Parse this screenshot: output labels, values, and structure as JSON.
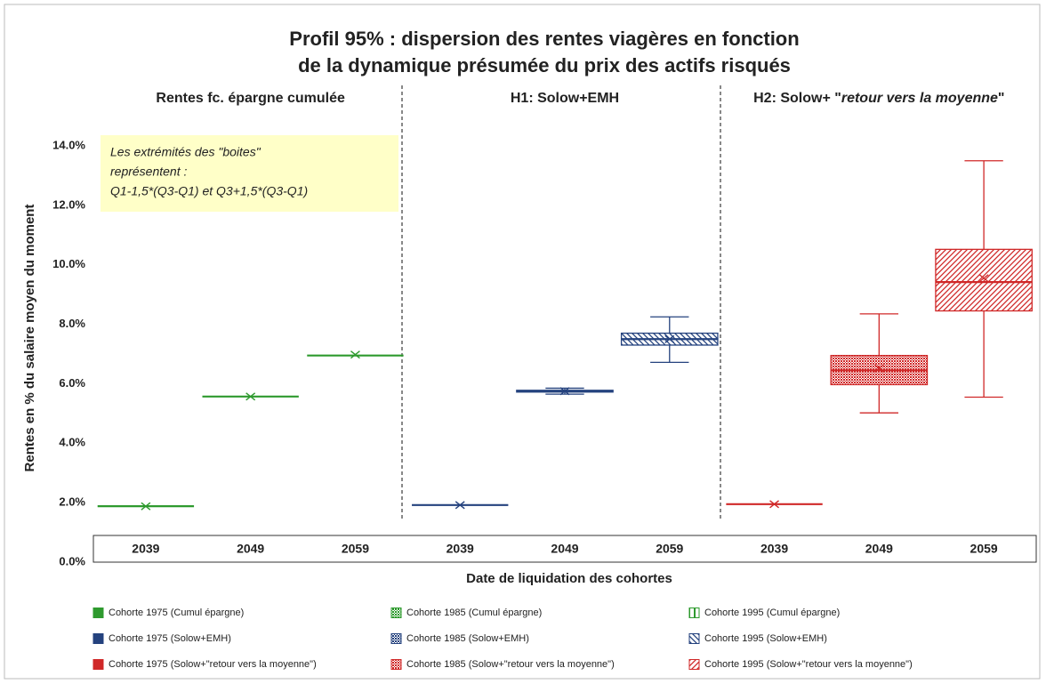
{
  "chart_data": {
    "type": "box",
    "title": [
      "Profil 95% : dispersion des rentes viagères en fonction",
      "de la dynamique présumée du prix des actifs risqués"
    ],
    "sections": [
      [
        "Rentes fc. épargne  cumulée"
      ],
      [
        "H1: Solow+EMH"
      ],
      [
        "H2: Solow+ \"",
        "retour vers la moyenne",
        "\""
      ]
    ],
    "annotation": [
      "Les extrémités des \"boites\"",
      "représentent :",
      "Q1-1,5*(Q3-Q1) et Q3+1,5*(Q3-Q1)"
    ],
    "ylabel": "Rentes en % du salaire moyen du moment",
    "xlabel": "Date de liquidation des cohortes",
    "ylim": [
      0,
      14
    ],
    "yticks": [
      {
        "value": 0,
        "label": "0.0%"
      },
      {
        "value": 2,
        "label": "2.0%"
      },
      {
        "value": 4,
        "label": "4.0%"
      },
      {
        "value": 6,
        "label": "6.0%"
      },
      {
        "value": 8,
        "label": "8.0%"
      },
      {
        "value": 10,
        "label": "10.0%"
      },
      {
        "value": 12,
        "label": "12.0%"
      },
      {
        "value": 14,
        "label": "14.0%"
      }
    ],
    "grid": false,
    "categories": [
      "2039",
      "2049",
      "2059",
      "2039",
      "2049",
      "2059",
      "2039",
      "2049",
      "2059"
    ],
    "series": [
      {
        "name": "Cohorte 1975 (Cumul épargne)",
        "color": "#2e9a2e",
        "pattern": "solid",
        "min": 1.88,
        "q1": 1.88,
        "median": 1.88,
        "q3": 1.88,
        "max": 1.88,
        "mean": 1.88
      },
      {
        "name": "Cohorte 1985  (Cumul épargne)",
        "color": "#2e9a2e",
        "pattern": "dots",
        "min": 5.57,
        "q1": 5.57,
        "median": 5.57,
        "q3": 5.57,
        "max": 5.57,
        "mean": 5.57
      },
      {
        "name": "Cohorte 1995  (Cumul épargne)",
        "color": "#2e9a2e",
        "pattern": "vlines",
        "min": 6.95,
        "q1": 6.95,
        "median": 6.95,
        "q3": 6.95,
        "max": 6.95,
        "mean": 6.98
      },
      {
        "name": "Cohorte 1975 (Solow+EMH)",
        "color": "#24427e",
        "pattern": "solid",
        "min": 1.92,
        "q1": 1.92,
        "median": 1.92,
        "q3": 1.92,
        "max": 1.92,
        "mean": 1.92
      },
      {
        "name": "Cohorte 1985  (Solow+EMH)",
        "color": "#24427e",
        "pattern": "dots",
        "min": 5.65,
        "q1": 5.72,
        "median": 5.75,
        "q3": 5.78,
        "max": 5.85,
        "mean": 5.75
      },
      {
        "name": "Cohorte 1995   (Solow+EMH)",
        "color": "#24427e",
        "pattern": "bdiag",
        "min": 6.72,
        "q1": 7.3,
        "median": 7.5,
        "q3": 7.7,
        "max": 8.25,
        "mean": 7.5
      },
      {
        "name": "Cohorte 1975 (Solow+\"retour vers la moyenne\")",
        "color": "#d02828",
        "pattern": "solid",
        "min": 1.95,
        "q1": 1.95,
        "median": 1.95,
        "q3": 1.95,
        "max": 1.95,
        "mean": 1.95
      },
      {
        "name": "Cohorte 1985  (Solow+\"retour vers la moyenne\")",
        "color": "#d02828",
        "pattern": "dots",
        "min": 5.02,
        "q1": 5.97,
        "median": 6.45,
        "q3": 6.95,
        "max": 8.35,
        "mean": 6.52
      },
      {
        "name": "Cohorte 1995  (Solow+\"retour vers la moyenne\")",
        "color": "#d02828",
        "pattern": "fdiag",
        "min": 5.55,
        "q1": 8.45,
        "median": 9.42,
        "q3": 10.52,
        "max": 13.5,
        "mean": 9.55
      }
    ]
  }
}
